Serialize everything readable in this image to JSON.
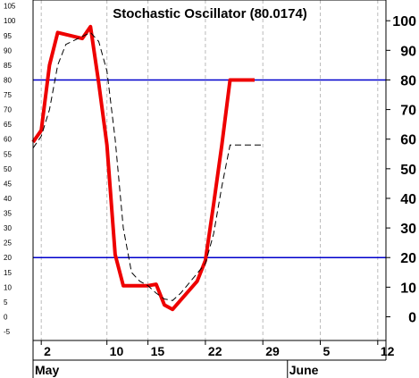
{
  "chart_data": {
    "type": "line",
    "title": "Stochastic Oscillator (80.0174)",
    "y_left_ticks": [
      -5,
      0,
      5,
      10,
      15,
      20,
      25,
      30,
      35,
      40,
      45,
      50,
      55,
      60,
      65,
      70,
      75,
      80,
      85,
      90,
      95,
      100,
      105
    ],
    "y_right_ticks": [
      0,
      10,
      20,
      30,
      40,
      50,
      60,
      70,
      80,
      90,
      100
    ],
    "ylim": [
      -8,
      107
    ],
    "x_ticks": [
      {
        "label": "2",
        "day": 2
      },
      {
        "label": "10",
        "day": 10
      },
      {
        "label": "15",
        "day": 15
      },
      {
        "label": "22",
        "day": 22
      },
      {
        "label": "29",
        "day": 29
      },
      {
        "label": "5",
        "day": 36
      },
      {
        "label": "12",
        "day": 43
      }
    ],
    "x_range_days": [
      1,
      44
    ],
    "months": [
      {
        "label": "May",
        "day": 1
      },
      {
        "label": "June",
        "day": 32
      }
    ],
    "reference_lines": [
      {
        "value": 80,
        "color": "#0000cc"
      },
      {
        "value": 20,
        "color": "#0000cc"
      }
    ],
    "series": [
      {
        "style": "solid",
        "color": "#ee0000",
        "x": [
          1,
          2,
          3,
          4,
          7,
          8,
          9,
          10,
          11,
          12,
          13,
          14,
          15,
          16,
          17,
          18,
          21,
          22,
          23,
          24,
          25,
          28
        ],
        "y": [
          59,
          63,
          85,
          96,
          94,
          98,
          79,
          58,
          21,
          10.5,
          10.5,
          10.5,
          10.5,
          11,
          4,
          2.5,
          12,
          19,
          38,
          58,
          80,
          80
        ]
      },
      {
        "style": "dashed",
        "color": "#000000",
        "x": [
          1,
          2,
          3,
          4,
          5,
          8,
          9,
          10,
          11,
          12,
          13,
          14,
          15,
          16,
          17,
          18,
          19,
          22,
          23,
          24,
          25,
          26,
          29
        ],
        "y": [
          57,
          61,
          70,
          85,
          92,
          96,
          93,
          83,
          60,
          30,
          15,
          12,
          10.5,
          8,
          6,
          5.5,
          8,
          18,
          28,
          44,
          58,
          58,
          58
        ]
      }
    ],
    "grid": true
  }
}
